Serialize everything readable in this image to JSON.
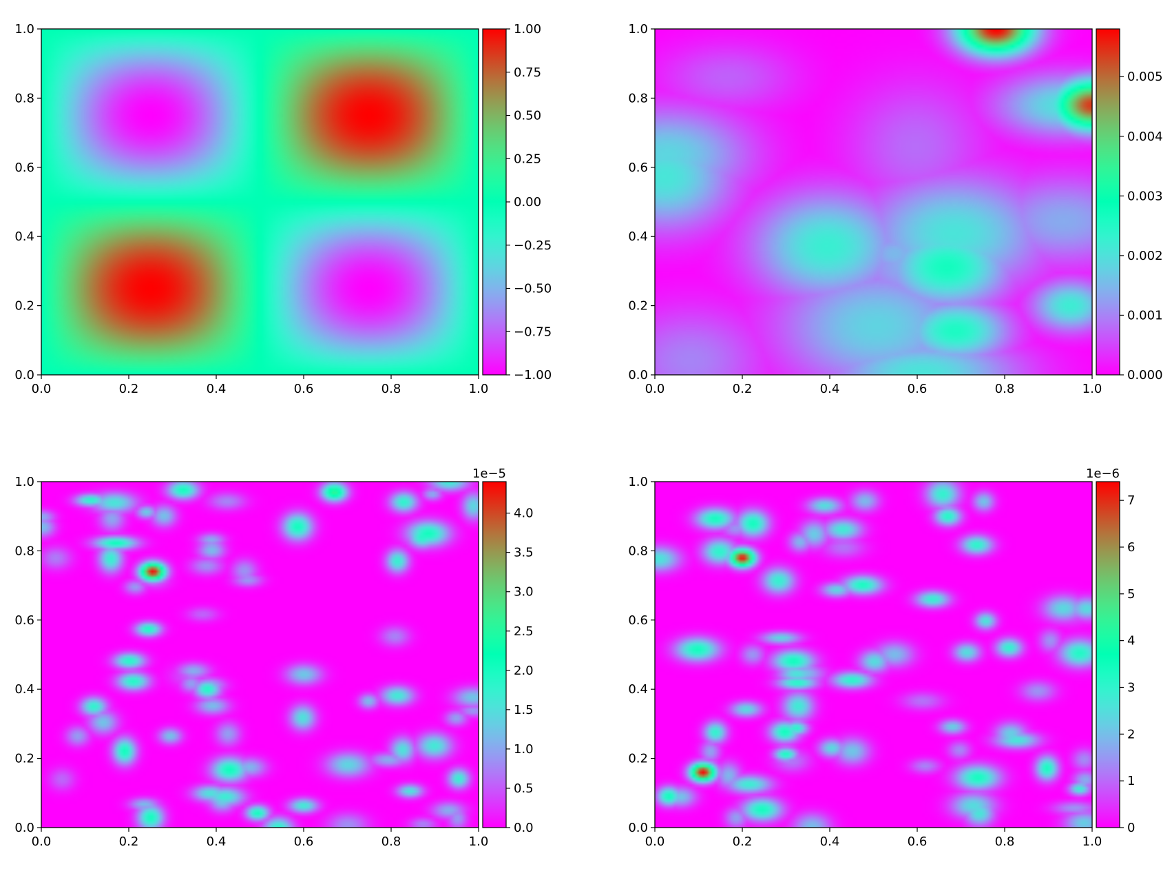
{
  "figure": {
    "layout": "2x2 grid of heatmaps with colorbars",
    "colormap": "rainbow"
  },
  "chart_data": [
    {
      "type": "heatmap",
      "title": "",
      "xlabel": "",
      "ylabel": "",
      "xlim": [
        0,
        1
      ],
      "ylim": [
        0,
        1
      ],
      "x_ticks": [
        "0.0",
        "0.2",
        "0.4",
        "0.6",
        "0.8",
        "1.0"
      ],
      "y_ticks": [
        "0.0",
        "0.2",
        "0.4",
        "0.6",
        "0.8",
        "1.0"
      ],
      "colorbar": {
        "range": [
          -1.0,
          1.0
        ],
        "ticks": [
          -1.0,
          -0.75,
          -0.5,
          -0.25,
          0.0,
          0.25,
          0.5,
          0.75,
          1.0
        ],
        "tick_labels": [
          "−1.00",
          "−0.75",
          "−0.50",
          "−0.25",
          "0.00",
          "0.25",
          "0.50",
          "0.75",
          "1.00"
        ],
        "offset_label": ""
      },
      "features": [
        {
          "x": 0.25,
          "y": 0.75,
          "value": -1.0
        },
        {
          "x": 0.75,
          "y": 0.75,
          "value": 1.0
        },
        {
          "x": 0.25,
          "y": 0.25,
          "value": 1.0
        },
        {
          "x": 0.75,
          "y": 0.25,
          "value": -1.0
        }
      ],
      "field": "sin(2πx)·sin(2πy) pattern"
    },
    {
      "type": "heatmap",
      "title": "",
      "xlabel": "",
      "ylabel": "",
      "xlim": [
        0,
        1
      ],
      "ylim": [
        0,
        1
      ],
      "x_ticks": [
        "0.0",
        "0.2",
        "0.4",
        "0.6",
        "0.8",
        "1.0"
      ],
      "y_ticks": [
        "0.0",
        "0.2",
        "0.4",
        "0.6",
        "0.8",
        "1.0"
      ],
      "colorbar": {
        "range": [
          0,
          0.0058
        ],
        "ticks": [
          0.0,
          0.001,
          0.002,
          0.003,
          0.004,
          0.005
        ],
        "tick_labels": [
          "0.000",
          "0.001",
          "0.002",
          "0.003",
          "0.004",
          "0.005"
        ],
        "offset_label": ""
      },
      "features": [
        {
          "x": 0.78,
          "y": 1.0,
          "value": 0.0058
        },
        {
          "x": 1.0,
          "y": 0.78,
          "value": 0.0054
        },
        {
          "x": 0.95,
          "y": 0.2,
          "value": 0.0022
        },
        {
          "x": 0.55,
          "y": 0.35,
          "value": 0.0015
        },
        {
          "x": 0.45,
          "y": 0.18,
          "value": 0.0014
        }
      ]
    },
    {
      "type": "heatmap",
      "title": "",
      "xlabel": "",
      "ylabel": "",
      "xlim": [
        0,
        1
      ],
      "ylim": [
        0,
        1
      ],
      "x_ticks": [
        "0.0",
        "0.2",
        "0.4",
        "0.6",
        "0.8",
        "1.0"
      ],
      "y_ticks": [
        "0.0",
        "0.2",
        "0.4",
        "0.6",
        "0.8",
        "1.0"
      ],
      "colorbar": {
        "range": [
          0,
          4.4
        ],
        "ticks": [
          0.0,
          0.5,
          1.0,
          1.5,
          2.0,
          2.5,
          3.0,
          3.5,
          4.0
        ],
        "tick_labels": [
          "0.0",
          "0.5",
          "1.0",
          "1.5",
          "2.0",
          "2.5",
          "3.0",
          "3.5",
          "4.0"
        ],
        "offset_label": "1e−5"
      },
      "features": [
        {
          "x": 0.255,
          "y": 0.74,
          "value": 4.3
        },
        {
          "x": 0.67,
          "y": 0.97,
          "value": 2.6
        },
        {
          "x": 0.38,
          "y": 0.4,
          "value": 1.9
        },
        {
          "x": 0.12,
          "y": 0.35,
          "value": 1.8
        }
      ]
    },
    {
      "type": "heatmap",
      "title": "",
      "xlabel": "",
      "ylabel": "",
      "xlim": [
        0,
        1
      ],
      "ylim": [
        0,
        1
      ],
      "x_ticks": [
        "0.0",
        "0.2",
        "0.4",
        "0.6",
        "0.8",
        "1.0"
      ],
      "y_ticks": [
        "0.0",
        "0.2",
        "0.4",
        "0.6",
        "0.8",
        "1.0"
      ],
      "colorbar": {
        "range": [
          0,
          7.4
        ],
        "ticks": [
          0,
          1,
          2,
          3,
          4,
          5,
          6,
          7
        ],
        "tick_labels": [
          "0",
          "1",
          "2",
          "3",
          "4",
          "5",
          "6",
          "7"
        ],
        "offset_label": "1e−6"
      },
      "features": [
        {
          "x": 0.2,
          "y": 0.78,
          "value": 7.2
        },
        {
          "x": 0.11,
          "y": 0.16,
          "value": 7.3
        },
        {
          "x": 0.67,
          "y": 0.9,
          "value": 3.2
        },
        {
          "x": 0.81,
          "y": 0.52,
          "value": 3.0
        }
      ]
    }
  ]
}
